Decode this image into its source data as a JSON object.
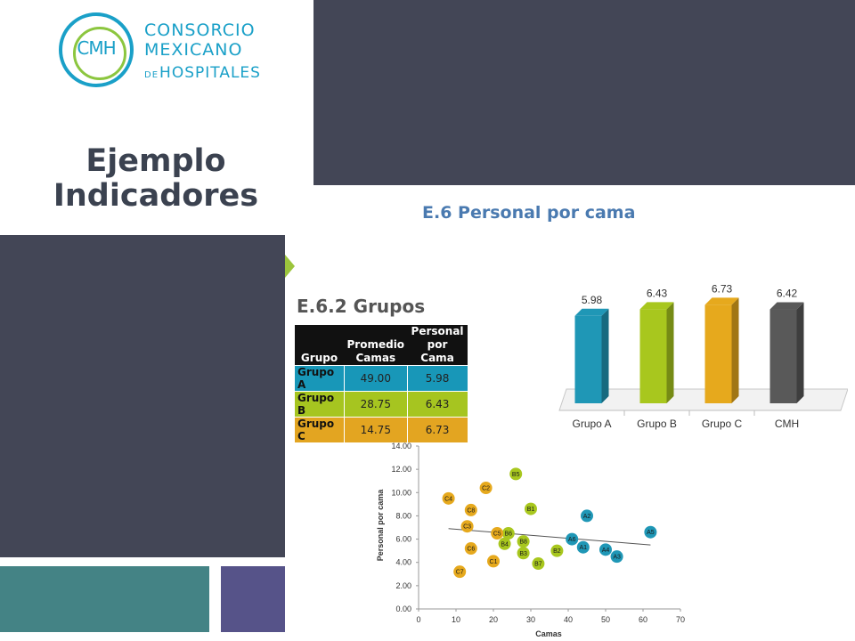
{
  "logo": {
    "abbrev": "CMH",
    "line1": "CONSORCIO",
    "line2": "MEXICANO",
    "line3_prefix": "DE",
    "line3": "HOSPITALES",
    "colors": {
      "primary": "#1aa0c8",
      "accent": "#8cc63f"
    }
  },
  "title": {
    "line1": "Ejemplo",
    "line2": "Indicadores"
  },
  "subtitle": "E.6 Personal por cama",
  "groups_title": "E.6.2 Grupos",
  "groups_table": {
    "headers": [
      "Grupo",
      "Promedio Camas",
      "Personal por Cama"
    ],
    "rows": [
      {
        "grupo": "Grupo A",
        "camas": "49.00",
        "personal": "5.98",
        "color": "#1897b8"
      },
      {
        "grupo": "Grupo B",
        "camas": "28.75",
        "personal": "6.43",
        "color": "#a6c520"
      },
      {
        "grupo": "Grupo C",
        "camas": "14.75",
        "personal": "6.73",
        "color": "#e3a521"
      }
    ]
  },
  "chart_data": [
    {
      "type": "bar",
      "categories": [
        "Grupo A",
        "Grupo B",
        "Grupo C",
        "CMH"
      ],
      "values": [
        5.98,
        6.43,
        6.73,
        6.42
      ],
      "labels": [
        "5.98",
        "6.43",
        "6.73",
        "6.42"
      ],
      "colors": [
        "#1f97b6",
        "#a8c71e",
        "#e6a91d",
        "#595959"
      ],
      "ylim": [
        0,
        7
      ],
      "grid": false,
      "style": "3d"
    },
    {
      "type": "scatter",
      "xlabel": "Camas",
      "ylabel": "Personal por cama",
      "xlim": [
        0,
        70
      ],
      "ylim": [
        0,
        14
      ],
      "xticks": [
        "0",
        "10",
        "20",
        "30",
        "40",
        "50",
        "60",
        "70"
      ],
      "yticks": [
        "0.00",
        "2.00",
        "4.00",
        "6.00",
        "8.00",
        "10.00",
        "12.00",
        "14.00"
      ],
      "trendline": {
        "x": [
          8,
          62
        ],
        "y": [
          6.9,
          5.5
        ]
      },
      "series": [
        {
          "color": "#1f97b6",
          "points": [
            {
              "label": "A2",
              "x": 45,
              "y": 8.0
            },
            {
              "label": "A5",
              "x": 62,
              "y": 6.6
            },
            {
              "label": "A6",
              "x": 41,
              "y": 6.0
            },
            {
              "label": "A1",
              "x": 44,
              "y": 5.3
            },
            {
              "label": "A4",
              "x": 50,
              "y": 5.1
            },
            {
              "label": "A3",
              "x": 53,
              "y": 4.5
            }
          ]
        },
        {
          "color": "#a8c71e",
          "points": [
            {
              "label": "B5",
              "x": 26,
              "y": 11.6
            },
            {
              "label": "B1",
              "x": 30,
              "y": 8.6
            },
            {
              "label": "B6",
              "x": 24,
              "y": 6.5
            },
            {
              "label": "B8",
              "x": 28,
              "y": 5.8
            },
            {
              "label": "B4",
              "x": 23,
              "y": 5.6
            },
            {
              "label": "B3",
              "x": 28,
              "y": 4.8
            },
            {
              "label": "B2",
              "x": 37,
              "y": 5.0
            },
            {
              "label": "B7",
              "x": 32,
              "y": 3.9
            }
          ]
        },
        {
          "color": "#e6a91d",
          "points": [
            {
              "label": "C4",
              "x": 8,
              "y": 9.5
            },
            {
              "label": "C2",
              "x": 18,
              "y": 10.4
            },
            {
              "label": "C8",
              "x": 14,
              "y": 8.5
            },
            {
              "label": "C3",
              "x": 13,
              "y": 7.1
            },
            {
              "label": "C5",
              "x": 21,
              "y": 6.5
            },
            {
              "label": "C6",
              "x": 14,
              "y": 5.2
            },
            {
              "label": "C1",
              "x": 20,
              "y": 4.1
            },
            {
              "label": "C7",
              "x": 11,
              "y": 3.2
            }
          ]
        }
      ]
    }
  ]
}
